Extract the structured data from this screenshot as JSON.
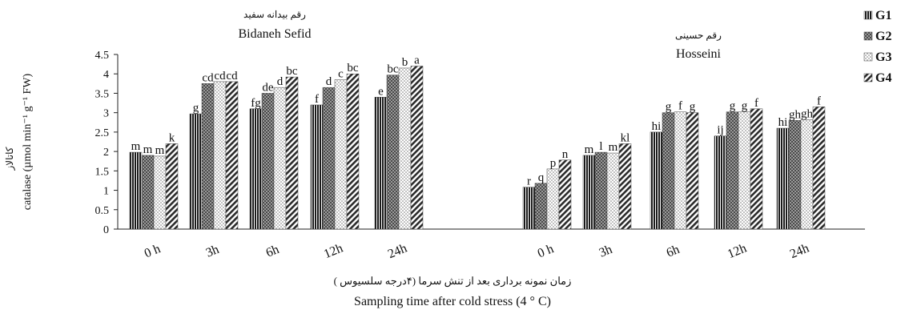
{
  "chart_data": {
    "type": "bar",
    "ylabel": "catalase (µmol min⁻¹ g⁻¹ FW)",
    "ylabel_fa": "کاتالاز",
    "xlabel": "Sampling time after cold stress (4 ° C)",
    "xlabel_fa": "زمان نمونه برداری بعد از تنش سرما (۴درجه سلسیوس )",
    "ylim": [
      0,
      4.5
    ],
    "yticks": [
      "0",
      "0.5",
      "1",
      "1.5",
      "2",
      "2.5",
      "3",
      "3.5",
      "4",
      "4.5"
    ],
    "grid": false,
    "legend_position": "top-right",
    "series": [
      {
        "name": "G1",
        "color": "#2a2a2a",
        "pattern": "vertical-lines"
      },
      {
        "name": "G2",
        "color": "#6a6a6a",
        "pattern": "checker"
      },
      {
        "name": "G3",
        "color": "#bdbdbd",
        "pattern": "dots"
      },
      {
        "name": "G4",
        "color": "#3c3c3c",
        "pattern": "diagonal"
      }
    ],
    "panels": [
      {
        "title": "Bidaneh Sefid",
        "title_fa": "رقم بیدانه سفید",
        "categories": [
          "0 h",
          "3h",
          "6h",
          "12h",
          "24h"
        ],
        "values": [
          [
            1.98,
            1.9,
            1.88,
            2.2
          ],
          [
            2.97,
            3.75,
            3.8,
            3.8
          ],
          [
            3.1,
            3.5,
            3.65,
            3.92
          ],
          [
            3.2,
            3.65,
            3.85,
            4.0
          ],
          [
            3.4,
            3.97,
            4.15,
            4.2
          ]
        ],
        "labels": [
          [
            "m",
            "m",
            "m",
            "k"
          ],
          [
            "g",
            "cd",
            "cd",
            "cd"
          ],
          [
            "fg",
            "de",
            "d",
            "bc"
          ],
          [
            "f",
            "d",
            "c",
            "bc"
          ],
          [
            "e",
            "bc",
            "b",
            "a"
          ]
        ]
      },
      {
        "title": "Hosseini",
        "title_fa": "رقم حسینی",
        "categories": [
          "0 h",
          "3h",
          "6h",
          "12h",
          "24h"
        ],
        "values": [
          [
            1.08,
            1.18,
            1.55,
            1.78
          ],
          [
            1.9,
            1.98,
            1.96,
            2.2
          ],
          [
            2.5,
            3.0,
            3.02,
            3.0
          ],
          [
            2.4,
            3.02,
            3.02,
            3.1
          ],
          [
            2.6,
            2.8,
            2.82,
            3.15
          ]
        ],
        "labels": [
          [
            "r",
            "q",
            "p",
            "n"
          ],
          [
            "m",
            "l",
            "m",
            "kl"
          ],
          [
            "hi",
            "g",
            "f",
            "g"
          ],
          [
            "ij",
            "g",
            "g",
            "f"
          ],
          [
            "hi",
            "gh",
            "gh",
            "f"
          ]
        ]
      }
    ]
  }
}
